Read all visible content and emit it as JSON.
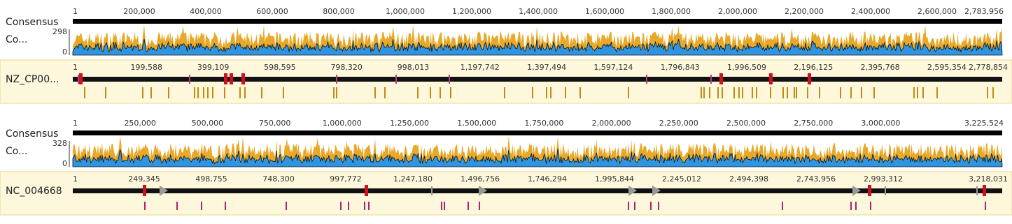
{
  "panels": [
    {
      "consensus_ruler": [
        "1",
        "200,000",
        "400,000",
        "600,000",
        "800,000",
        "1,000,000",
        "1,200,000",
        "1,400,000",
        "1,600,000",
        "1,800,000",
        "2,000,000",
        "2,200,000",
        "2,400,000",
        "2,600,000",
        "2,783,956"
      ],
      "consensus_label": "Consensus",
      "coverage_label": "Co...",
      "coverage_max": "298",
      "coverage_min": "0",
      "sequence_ruler": [
        "1",
        "199,588",
        "399,109",
        "598,595",
        "798,320",
        "998,013",
        "1,197,742",
        "1,397,494",
        "1,597,124",
        "1,796,843",
        "1,996,509",
        "2,196,125",
        "2,395,768",
        "2,595,354",
        "2,778,854"
      ],
      "sequence_label": "NZ_CP00..."
    },
    {
      "consensus_ruler": [
        "1",
        "250,000",
        "500,000",
        "750,000",
        "1,000,000",
        "1,250,000",
        "1,500,000",
        "1,750,000",
        "2,000,000",
        "2,250,000",
        "2,500,000",
        "2,750,000",
        "3,000,000",
        "3,225,524"
      ],
      "consensus_label": "Consensus",
      "coverage_label": "Co...",
      "coverage_max": "328",
      "coverage_min": "0",
      "sequence_ruler": [
        "1",
        "249,345",
        "498,755",
        "748,300",
        "997,772",
        "1,247,180",
        "1,496,756",
        "1,746,294",
        "1,995,844",
        "2,245,012",
        "2,494,398",
        "2,743,956",
        "2,993,312",
        "3,218,031"
      ],
      "sequence_label": "NC_004668"
    }
  ]
}
